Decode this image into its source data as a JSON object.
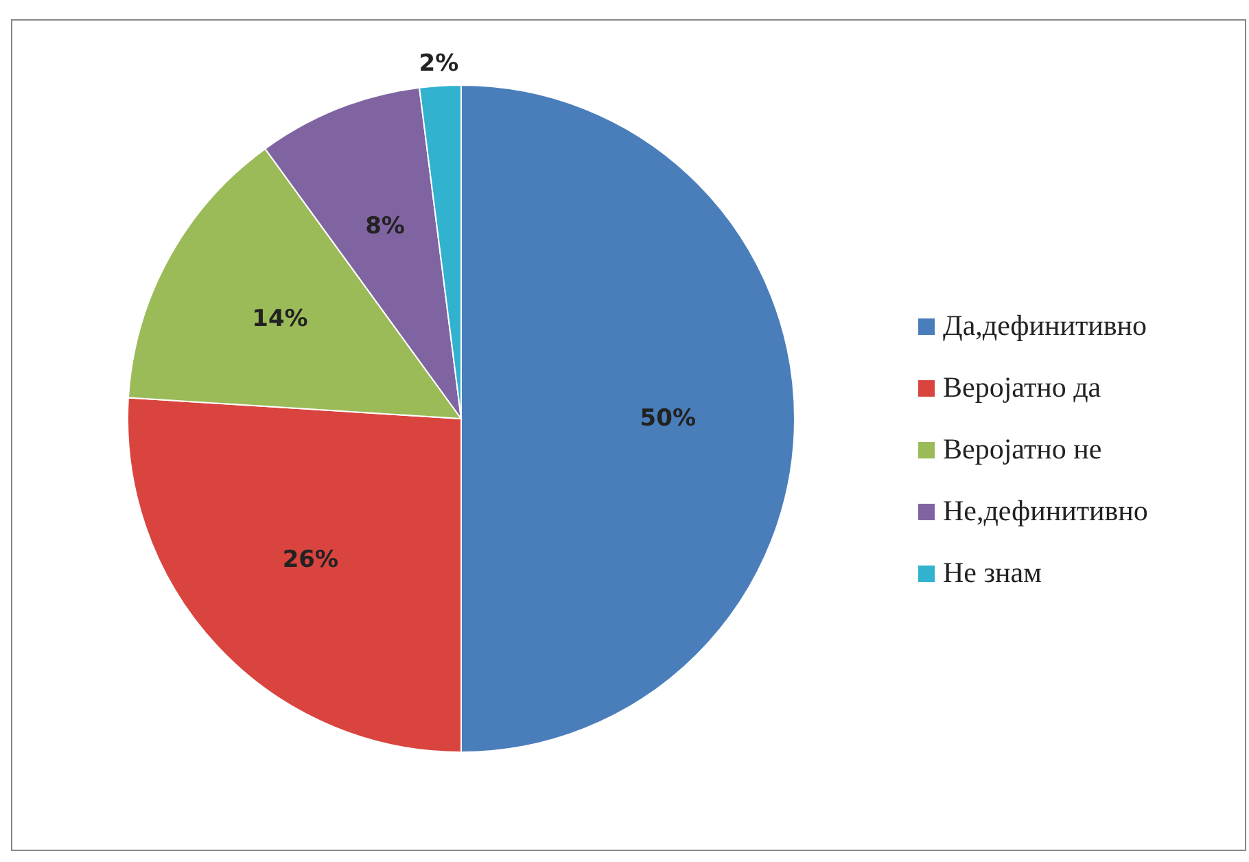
{
  "chart_data": {
    "type": "pie",
    "categories": [
      "Да,дефинитивно",
      "Веројатно да",
      "Веројатно не",
      "Не,дефинитивно",
      "Не знам"
    ],
    "values": [
      50,
      26,
      14,
      8,
      2
    ],
    "value_labels": [
      "50%",
      "26%",
      "14%",
      "8%",
      "2%"
    ],
    "colors": [
      "#4a7ebb",
      "#d9443f",
      "#9bbb59",
      "#8064a2",
      "#31b2cf"
    ],
    "legend": "right"
  }
}
